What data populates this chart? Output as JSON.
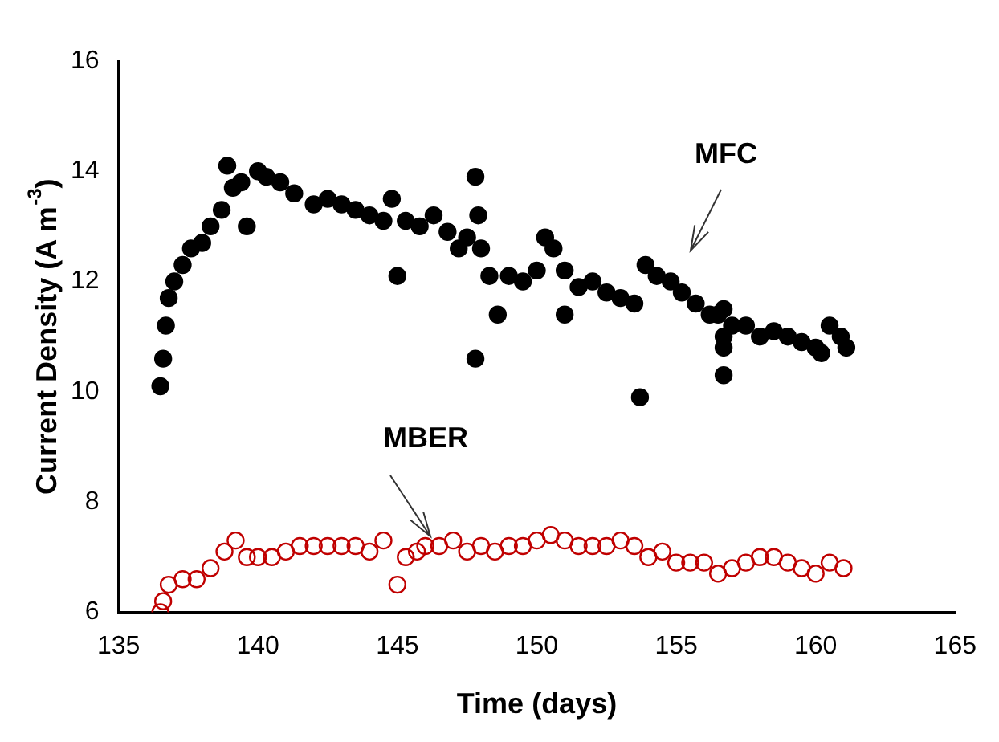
{
  "chart_data": {
    "type": "scatter",
    "xlabel": "Time (days)",
    "ylabel": "Current Density (A m$^{-3}$)",
    "xlim": [
      135,
      165
    ],
    "xticks": [
      135,
      140,
      145,
      150,
      155,
      160,
      165
    ],
    "ylim": [
      6,
      16
    ],
    "yticks": [
      6,
      8,
      10,
      12,
      14,
      16
    ],
    "grid": false,
    "legend": false,
    "marker": "circle",
    "annotations": [
      "MFC",
      "MBER"
    ],
    "series": [
      {
        "color": "#000000",
        "x": [
          136.5,
          136.6,
          136.7,
          136.8,
          137,
          137.3,
          137.6,
          138,
          138.3,
          138.7,
          138.9,
          139.1,
          139.4,
          139.6,
          140,
          140.3,
          140.8,
          141.3,
          142,
          142.5,
          143,
          143.5,
          144,
          144.5,
          144.8,
          145,
          145.3,
          145.8,
          146.3,
          146.8,
          147.2,
          147.5,
          147.8,
          147.9,
          148,
          147.8,
          148.3,
          148.6,
          149,
          149.5,
          150,
          150.3,
          150.6,
          151,
          151,
          151.5,
          152,
          152.5,
          153,
          153.5,
          153.7,
          153.9,
          154.3,
          154.8,
          155.2,
          155.7,
          156.2,
          156.5,
          156.7,
          156.7,
          156.7,
          156.7,
          157,
          157.5,
          158,
          158.5,
          159,
          159.5,
          160,
          160.2,
          160.5,
          160.9,
          161.1
        ],
        "values": [
          10.1,
          10.6,
          11.2,
          11.7,
          12.0,
          12.3,
          12.6,
          12.7,
          13.0,
          13.3,
          14.1,
          13.7,
          13.8,
          13.0,
          14.0,
          13.9,
          13.8,
          13.6,
          13.4,
          13.5,
          13.4,
          13.3,
          13.2,
          13.1,
          13.5,
          12.1,
          13.1,
          13.0,
          13.2,
          12.9,
          12.6,
          12.8,
          13.9,
          13.2,
          12.6,
          10.6,
          12.1,
          11.4,
          12.1,
          12.0,
          12.2,
          12.8,
          12.6,
          11.4,
          12.2,
          11.9,
          12.0,
          11.8,
          11.7,
          11.6,
          9.9,
          12.3,
          12.1,
          12.0,
          11.8,
          11.6,
          11.4,
          11.4,
          11.5,
          11.0,
          10.8,
          10.3,
          11.2,
          11.2,
          11.0,
          11.1,
          11.0,
          10.9,
          10.8,
          10.7,
          11.2,
          11.0,
          10.8
        ]
      },
      {
        "color": "#c00000",
        "marker": "open circle",
        "x": [
          136.5,
          136.6,
          136.8,
          137.3,
          137.8,
          138.3,
          138.8,
          139.2,
          139.6,
          140,
          140.5,
          141,
          141.5,
          142,
          142.5,
          143,
          143.5,
          144,
          144.5,
          145,
          145.3,
          145.7,
          146,
          146.5,
          147,
          147.5,
          148,
          148.5,
          149,
          149.5,
          150,
          150.5,
          151,
          151.5,
          152,
          152.5,
          153,
          153.5,
          154,
          154.5,
          155,
          155.5,
          156,
          156.5,
          157,
          157.5,
          158,
          158.5,
          159,
          159.5,
          160,
          160.5,
          161
        ],
        "values": [
          6.0,
          6.2,
          6.5,
          6.6,
          6.6,
          6.8,
          7.1,
          7.3,
          7.0,
          7.0,
          7.0,
          7.1,
          7.2,
          7.2,
          7.2,
          7.2,
          7.2,
          7.1,
          7.3,
          6.5,
          7.0,
          7.1,
          7.2,
          7.2,
          7.3,
          7.1,
          7.2,
          7.1,
          7.2,
          7.2,
          7.3,
          7.4,
          7.3,
          7.2,
          7.2,
          7.2,
          7.3,
          7.2,
          7.0,
          7.1,
          6.9,
          6.9,
          6.9,
          6.7,
          6.8,
          6.9,
          7.0,
          7.0,
          6.9,
          6.8,
          6.7,
          6.9,
          6.8
        ]
      }
    ]
  }
}
